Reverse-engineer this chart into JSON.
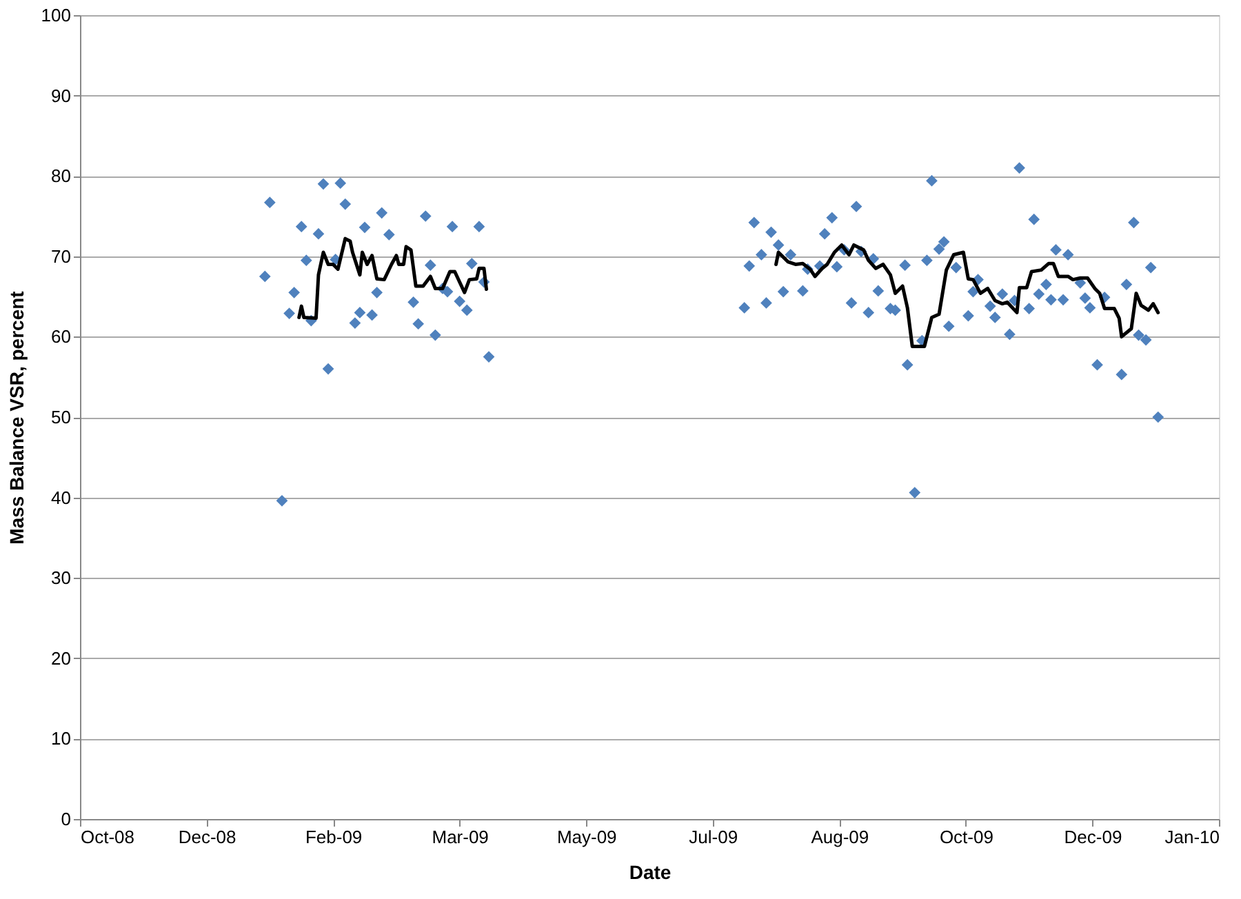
{
  "chart_data": {
    "type": "scatter",
    "xlabel": "Date",
    "ylabel": "Mass Balance VSR, percent",
    "xlim": [
      "2008-10-20",
      "2010-01-31"
    ],
    "xticks": [
      {
        "value": "2008-10-20",
        "label": "Oct-08"
      },
      {
        "value": "2008-12-11",
        "label": "Dec-08"
      },
      {
        "value": "2009-02-01",
        "label": "Feb-09"
      },
      {
        "value": "2009-03-25",
        "label": "Mar-09"
      },
      {
        "value": "2009-05-16",
        "label": "May-09"
      },
      {
        "value": "2009-07-07",
        "label": "Jul-09"
      },
      {
        "value": "2009-08-28",
        "label": "Aug-09"
      },
      {
        "value": "2009-10-19",
        "label": "Oct-09"
      },
      {
        "value": "2009-12-10",
        "label": "Dec-09"
      },
      {
        "value": "2010-01-31",
        "label": "Jan-10"
      }
    ],
    "ylim": [
      0,
      100
    ],
    "yticks": [
      0,
      10,
      20,
      30,
      40,
      50,
      60,
      70,
      80,
      90,
      100
    ],
    "grid": "y",
    "series": [
      {
        "type": "scatter",
        "marker": "diamond",
        "color": "#4f81bd",
        "x": [
          "2009-01-04",
          "2009-01-06",
          "2009-01-11",
          "2009-01-14",
          "2009-01-16",
          "2009-01-19",
          "2009-01-21",
          "2009-01-23",
          "2009-01-26",
          "2009-01-28",
          "2009-01-30",
          "2009-02-02",
          "2009-02-04",
          "2009-02-06",
          "2009-02-10",
          "2009-02-12",
          "2009-02-14",
          "2009-02-17",
          "2009-02-19",
          "2009-02-21",
          "2009-02-24",
          "2009-03-06",
          "2009-03-08",
          "2009-03-11",
          "2009-03-13",
          "2009-03-15",
          "2009-03-18",
          "2009-03-20",
          "2009-03-22",
          "2009-03-25",
          "2009-03-28",
          "2009-03-30",
          "2009-04-02",
          "2009-04-04",
          "2009-04-06",
          "2009-07-20",
          "2009-07-22",
          "2009-07-24",
          "2009-07-27",
          "2009-07-29",
          "2009-07-31",
          "2009-08-03",
          "2009-08-05",
          "2009-08-08",
          "2009-08-13",
          "2009-08-15",
          "2009-08-20",
          "2009-08-22",
          "2009-08-25",
          "2009-08-27",
          "2009-08-30",
          "2009-09-02",
          "2009-09-04",
          "2009-09-06",
          "2009-09-09",
          "2009-09-11",
          "2009-09-13",
          "2009-09-18",
          "2009-09-20",
          "2009-09-24",
          "2009-09-25",
          "2009-09-28",
          "2009-10-01",
          "2009-10-03",
          "2009-10-05",
          "2009-10-08",
          "2009-10-10",
          "2009-10-12",
          "2009-10-15",
          "2009-10-20",
          "2009-10-22",
          "2009-10-24",
          "2009-10-29",
          "2009-10-31",
          "2009-11-03",
          "2009-11-06",
          "2009-11-08",
          "2009-11-10",
          "2009-11-14",
          "2009-11-16",
          "2009-11-18",
          "2009-11-21",
          "2009-11-23",
          "2009-11-25",
          "2009-11-28",
          "2009-11-30",
          "2009-12-05",
          "2009-12-07",
          "2009-12-09",
          "2009-12-12",
          "2009-12-15",
          "2009-12-22",
          "2009-12-24",
          "2009-12-27",
          "2009-12-29",
          "2010-01-01",
          "2010-01-03",
          "2010-01-06"
        ],
        "values": [
          67.5,
          76.7,
          39.6,
          62.9,
          65.5,
          73.7,
          69.5,
          62.0,
          72.8,
          79.0,
          56.0,
          69.6,
          79.1,
          76.5,
          61.7,
          63.0,
          73.6,
          62.7,
          65.5,
          75.4,
          72.7,
          64.3,
          61.6,
          75.0,
          68.9,
          60.2,
          66.0,
          65.6,
          73.7,
          64.4,
          63.3,
          69.1,
          73.7,
          66.8,
          57.5,
          63.6,
          68.8,
          74.2,
          70.2,
          64.2,
          73.0,
          71.4,
          65.6,
          70.2,
          65.7,
          68.4,
          68.8,
          72.8,
          74.8,
          68.7,
          70.8,
          64.2,
          76.2,
          70.6,
          63.0,
          69.7,
          65.7,
          63.5,
          63.3,
          68.9,
          56.5,
          40.6,
          59.5,
          69.5,
          79.4,
          70.9,
          71.8,
          61.3,
          68.6,
          62.6,
          65.6,
          67.1,
          63.8,
          62.4,
          65.3,
          60.3,
          64.5,
          81.0,
          63.5,
          74.6,
          65.3,
          66.5,
          64.6,
          70.8,
          64.6,
          70.2,
          66.7,
          64.8,
          63.6,
          56.5,
          64.9,
          55.3,
          66.5,
          74.2,
          60.2,
          59.6,
          68.6,
          50.0
        ]
      },
      {
        "type": "line",
        "marker": "none",
        "line_style": "solid",
        "color": "#000000",
        "x": [
          "2009-01-18",
          "2009-01-19",
          "2009-01-20",
          "2009-01-25",
          "2009-01-26",
          "2009-01-28",
          "2009-01-30",
          "2009-02-01",
          "2009-02-03",
          "2009-02-06",
          "2009-02-08",
          "2009-02-09",
          "2009-02-12",
          "2009-02-13",
          "2009-02-15",
          "2009-02-17",
          "2009-02-19",
          "2009-02-22",
          "2009-02-25",
          "2009-02-27",
          "2009-02-28",
          "2009-03-02",
          "2009-03-03",
          "2009-03-05",
          "2009-03-07",
          "2009-03-10",
          "2009-03-13",
          "2009-03-15",
          "2009-03-18",
          "2009-03-21",
          "2009-03-23",
          "2009-03-27",
          "2009-03-29",
          "2009-04-01",
          "2009-04-02",
          "2009-04-04",
          "2009-04-05",
          "2009-05-16",
          "2009-08-02",
          "2009-08-03",
          "2009-08-07",
          "2009-08-10",
          "2009-08-13",
          "2009-08-16",
          "2009-08-18",
          "2009-08-21",
          "2009-08-23",
          "2009-08-26",
          "2009-08-29",
          "2009-09-01",
          "2009-09-03",
          "2009-09-07",
          "2009-09-09",
          "2009-09-12",
          "2009-09-15",
          "2009-09-18",
          "2009-09-20",
          "2009-09-23",
          "2009-09-25",
          "2009-09-27",
          "2009-10-02",
          "2009-10-05",
          "2009-10-08",
          "2009-10-11",
          "2009-10-14",
          "2009-10-18",
          "2009-10-20",
          "2009-10-22",
          "2009-10-25",
          "2009-10-28",
          "2009-10-31",
          "2009-11-03",
          "2009-11-05",
          "2009-11-09",
          "2009-11-10",
          "2009-11-13",
          "2009-11-15",
          "2009-11-19",
          "2009-11-22",
          "2009-11-24",
          "2009-11-26",
          "2009-11-30",
          "2009-12-02",
          "2009-12-05",
          "2009-12-08",
          "2009-12-11",
          "2009-12-13",
          "2009-12-15",
          "2009-12-19",
          "2009-12-21",
          "2009-12-22",
          "2009-12-26",
          "2009-12-28",
          "2009-12-30",
          "2010-01-02",
          "2010-01-04",
          "2010-01-06"
        ],
        "values": [
          62.4,
          63.8,
          62.4,
          62.3,
          67.7,
          70.5,
          69.0,
          69.0,
          68.4,
          72.2,
          71.9,
          70.5,
          67.7,
          70.5,
          69.0,
          70.1,
          67.2,
          67.1,
          69.0,
          70.1,
          69.0,
          69.0,
          71.2,
          70.8,
          66.3,
          66.3,
          67.5,
          66.0,
          66.0,
          68.1,
          68.1,
          65.5,
          67.1,
          67.2,
          68.5,
          68.5,
          65.9,
          null,
          69.0,
          70.5,
          69.3,
          69.0,
          69.1,
          68.4,
          67.5,
          68.5,
          69.0,
          70.5,
          71.4,
          70.2,
          71.4,
          70.8,
          69.5,
          68.5,
          69.0,
          67.7,
          65.4,
          66.3,
          63.6,
          58.8,
          58.8,
          62.4,
          62.8,
          68.3,
          70.2,
          70.5,
          67.2,
          67.1,
          65.4,
          66.0,
          64.5,
          64.1,
          64.3,
          63.0,
          66.1,
          66.1,
          68.1,
          68.3,
          69.1,
          69.1,
          67.5,
          67.5,
          67.1,
          67.3,
          67.3,
          66.0,
          65.4,
          63.5,
          63.5,
          62.3,
          60.0,
          61.0,
          65.4,
          63.9,
          63.3,
          64.1,
          63.0
        ]
      }
    ]
  }
}
